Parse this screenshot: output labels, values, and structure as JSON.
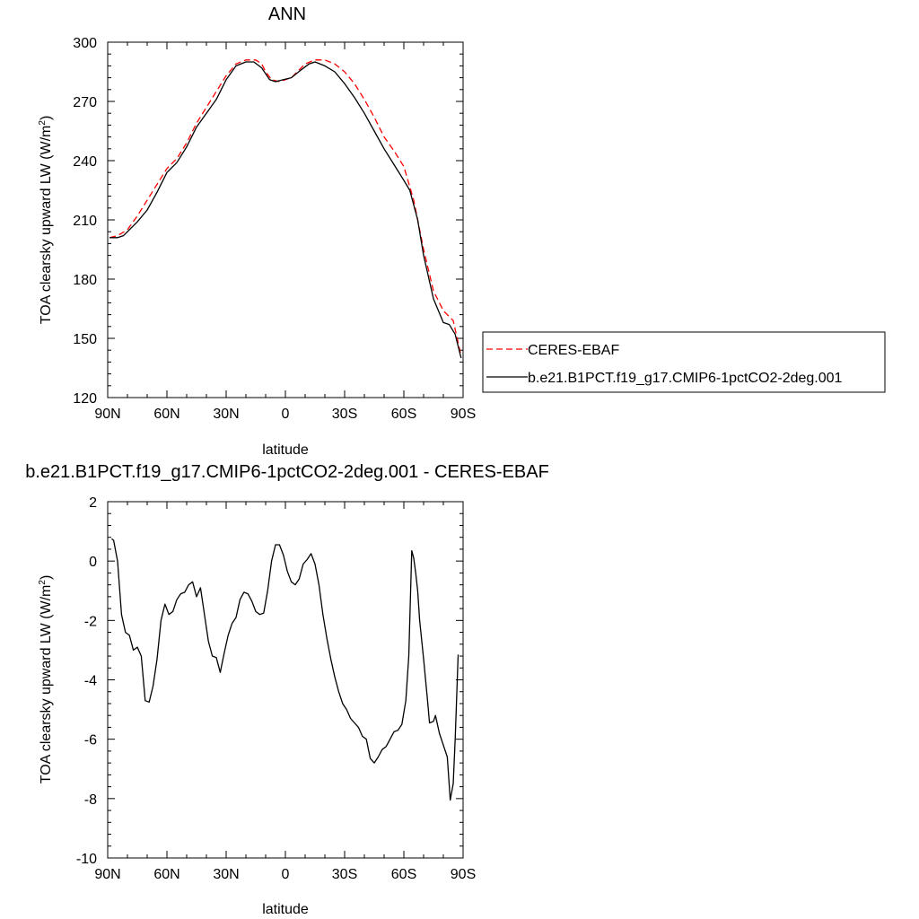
{
  "colors": {
    "ceres": "#ff0000",
    "model": "#000000",
    "axis": "#000000",
    "background": "#ffffff"
  },
  "chart_data": [
    {
      "type": "line",
      "title": "ANN",
      "xlabel": "latitude",
      "ylabel_main": "TOA clearsky upward LW (W/m",
      "ylabel_sup": "2",
      "ylabel_close": ")",
      "xlim": [
        90,
        -90
      ],
      "ylim": [
        120,
        300
      ],
      "xticks": [
        {
          "value": 90,
          "label": "90N"
        },
        {
          "value": 60,
          "label": "60N"
        },
        {
          "value": 30,
          "label": "30N"
        },
        {
          "value": 0,
          "label": "0"
        },
        {
          "value": -30,
          "label": "30S"
        },
        {
          "value": -60,
          "label": "60S"
        },
        {
          "value": -90,
          "label": "90S"
        }
      ],
      "yticks": [
        {
          "value": 300,
          "label": "300"
        },
        {
          "value": 270,
          "label": "270"
        },
        {
          "value": 240,
          "label": "240"
        },
        {
          "value": 210,
          "label": "210"
        },
        {
          "value": 180,
          "label": "180"
        },
        {
          "value": 150,
          "label": "150"
        },
        {
          "value": 120,
          "label": "120"
        }
      ],
      "legend": {
        "placement": "right",
        "entries": [
          {
            "label": "CERES-EBAF",
            "style": "dashed",
            "color": "#ff0000"
          },
          {
            "label": "b.e21.B1PCT.f19_g17.CMIP6-1pctCO2-2deg.001",
            "style": "solid",
            "color": "#000000"
          }
        ]
      },
      "series": [
        {
          "name": "CERES-EBAF",
          "style": "dashed",
          "color": "#ff0000",
          "points": [
            [
              89,
              201
            ],
            [
              85,
              202
            ],
            [
              80,
              205
            ],
            [
              75,
              212
            ],
            [
              70,
              220
            ],
            [
              65,
              228
            ],
            [
              60,
              236
            ],
            [
              55,
              241
            ],
            [
              50,
              249
            ],
            [
              45,
              259
            ],
            [
              40,
              267
            ],
            [
              35,
              275
            ],
            [
              30,
              283
            ],
            [
              25,
              289
            ],
            [
              20,
              291
            ],
            [
              15,
              291
            ],
            [
              12,
              289
            ],
            [
              10,
              285
            ],
            [
              7,
              281
            ],
            [
              3,
              280
            ],
            [
              0,
              281
            ],
            [
              -3,
              282
            ],
            [
              -7,
              286
            ],
            [
              -10,
              289
            ],
            [
              -15,
              291
            ],
            [
              -20,
              291
            ],
            [
              -25,
              289
            ],
            [
              -30,
              285
            ],
            [
              -35,
              279
            ],
            [
              -40,
              271
            ],
            [
              -45,
              262
            ],
            [
              -50,
              252
            ],
            [
              -55,
              245
            ],
            [
              -60,
              237
            ],
            [
              -65,
              220
            ],
            [
              -70,
              195
            ],
            [
              -75,
              174
            ],
            [
              -80,
              164
            ],
            [
              -85,
              159
            ],
            [
              -89,
              141
            ]
          ]
        },
        {
          "name": "b.e21.B1PCT.f19_g17.CMIP6-1pctCO2-2deg.001",
          "style": "solid",
          "color": "#000000",
          "points": [
            [
              89,
              201
            ],
            [
              85,
              201
            ],
            [
              82,
              202
            ],
            [
              78,
              206
            ],
            [
              75,
              209
            ],
            [
              70,
              215
            ],
            [
              65,
              224
            ],
            [
              60,
              234
            ],
            [
              55,
              239
            ],
            [
              50,
              247
            ],
            [
              45,
              257
            ],
            [
              40,
              264
            ],
            [
              35,
              271
            ],
            [
              30,
              281
            ],
            [
              25,
              288
            ],
            [
              20,
              290
            ],
            [
              16,
              290
            ],
            [
              12,
              287
            ],
            [
              8,
              281
            ],
            [
              5,
              280
            ],
            [
              1,
              281
            ],
            [
              -3,
              282
            ],
            [
              -8,
              286
            ],
            [
              -12,
              289
            ],
            [
              -15,
              290
            ],
            [
              -20,
              288
            ],
            [
              -25,
              285
            ],
            [
              -30,
              279
            ],
            [
              -35,
              272
            ],
            [
              -40,
              264
            ],
            [
              -45,
              255
            ],
            [
              -50,
              246
            ],
            [
              -55,
              238
            ],
            [
              -60,
              230
            ],
            [
              -63,
              225
            ],
            [
              -67,
              210
            ],
            [
              -70,
              192
            ],
            [
              -75,
              170
            ],
            [
              -80,
              158
            ],
            [
              -83,
              157
            ],
            [
              -86,
              152
            ],
            [
              -89,
              140
            ]
          ]
        }
      ]
    },
    {
      "type": "line",
      "title": "b.e21.B1PCT.f19_g17.CMIP6-1pctCO2-2deg.001 - CERES-EBAF",
      "xlabel": "latitude",
      "ylabel_main": "TOA clearsky upward LW (W/m",
      "ylabel_sup": "2",
      "ylabel_close": ")",
      "xlim": [
        90,
        -90
      ],
      "ylim": [
        -10,
        2
      ],
      "xticks": [
        {
          "value": 90,
          "label": "90N"
        },
        {
          "value": 60,
          "label": "60N"
        },
        {
          "value": 30,
          "label": "30N"
        },
        {
          "value": 0,
          "label": "0"
        },
        {
          "value": -30,
          "label": "30S"
        },
        {
          "value": -60,
          "label": "60S"
        },
        {
          "value": -90,
          "label": "90S"
        }
      ],
      "yticks": [
        {
          "value": 2,
          "label": "2"
        },
        {
          "value": 0,
          "label": "0"
        },
        {
          "value": -2,
          "label": "-2"
        },
        {
          "value": -4,
          "label": "-4"
        },
        {
          "value": -6,
          "label": "-6"
        },
        {
          "value": -8,
          "label": "-8"
        },
        {
          "value": -10,
          "label": "-10"
        }
      ],
      "series": [
        {
          "style": "solid",
          "color": "#000000",
          "points": [
            [
              88,
              0.75
            ],
            [
              87,
              0.7
            ],
            [
              85,
              0.0
            ],
            [
              83,
              -1.8
            ],
            [
              81,
              -2.4
            ],
            [
              79,
              -2.5
            ],
            [
              77,
              -3.0
            ],
            [
              75,
              -2.9
            ],
            [
              73,
              -3.2
            ],
            [
              71,
              -4.7
            ],
            [
              69,
              -4.75
            ],
            [
              67,
              -4.2
            ],
            [
              65,
              -3.3
            ],
            [
              63,
              -2.0
            ],
            [
              61,
              -1.45
            ],
            [
              59,
              -1.8
            ],
            [
              57,
              -1.7
            ],
            [
              55,
              -1.3
            ],
            [
              53,
              -1.1
            ],
            [
              51,
              -1.05
            ],
            [
              49,
              -0.8
            ],
            [
              47,
              -0.7
            ],
            [
              45,
              -1.2
            ],
            [
              43,
              -0.9
            ],
            [
              41,
              -1.8
            ],
            [
              39,
              -2.7
            ],
            [
              37,
              -3.2
            ],
            [
              35,
              -3.25
            ],
            [
              33,
              -3.75
            ],
            [
              31,
              -3.1
            ],
            [
              29,
              -2.5
            ],
            [
              27,
              -2.1
            ],
            [
              25,
              -1.9
            ],
            [
              23,
              -1.3
            ],
            [
              21,
              -1.05
            ],
            [
              19,
              -1.1
            ],
            [
              17,
              -1.35
            ],
            [
              15,
              -1.7
            ],
            [
              13,
              -1.8
            ],
            [
              11,
              -1.75
            ],
            [
              9,
              -1.0
            ],
            [
              7,
              0.0
            ],
            [
              5,
              0.55
            ],
            [
              3,
              0.55
            ],
            [
              1,
              0.2
            ],
            [
              -1,
              -0.35
            ],
            [
              -3,
              -0.7
            ],
            [
              -5,
              -0.8
            ],
            [
              -7,
              -0.6
            ],
            [
              -9,
              -0.1
            ],
            [
              -11,
              0.05
            ],
            [
              -13,
              0.25
            ],
            [
              -15,
              -0.1
            ],
            [
              -17,
              -0.8
            ],
            [
              -19,
              -1.8
            ],
            [
              -21,
              -2.6
            ],
            [
              -23,
              -3.3
            ],
            [
              -25,
              -3.9
            ],
            [
              -27,
              -4.4
            ],
            [
              -29,
              -4.8
            ],
            [
              -31,
              -5.0
            ],
            [
              -33,
              -5.3
            ],
            [
              -35,
              -5.45
            ],
            [
              -37,
              -5.6
            ],
            [
              -39,
              -5.9
            ],
            [
              -41,
              -6.0
            ],
            [
              -43,
              -6.65
            ],
            [
              -45,
              -6.8
            ],
            [
              -47,
              -6.6
            ],
            [
              -49,
              -6.35
            ],
            [
              -51,
              -6.25
            ],
            [
              -53,
              -6.0
            ],
            [
              -55,
              -5.75
            ],
            [
              -57,
              -5.7
            ],
            [
              -59,
              -5.5
            ],
            [
              -61,
              -4.7
            ],
            [
              -62.5,
              -3.2
            ],
            [
              -64,
              0.35
            ],
            [
              -65,
              0.1
            ],
            [
              -66,
              -0.4
            ],
            [
              -67,
              -1.0
            ],
            [
              -68,
              -2.0
            ],
            [
              -70,
              -3.3
            ],
            [
              -72,
              -4.7
            ],
            [
              -73,
              -5.45
            ],
            [
              -75,
              -5.4
            ],
            [
              -76,
              -5.2
            ],
            [
              -78,
              -5.8
            ],
            [
              -80,
              -6.2
            ],
            [
              -82,
              -6.6
            ],
            [
              -83.5,
              -8.05
            ],
            [
              -85,
              -7.5
            ],
            [
              -86,
              -6.0
            ],
            [
              -87.5,
              -3.15
            ]
          ]
        }
      ]
    }
  ]
}
